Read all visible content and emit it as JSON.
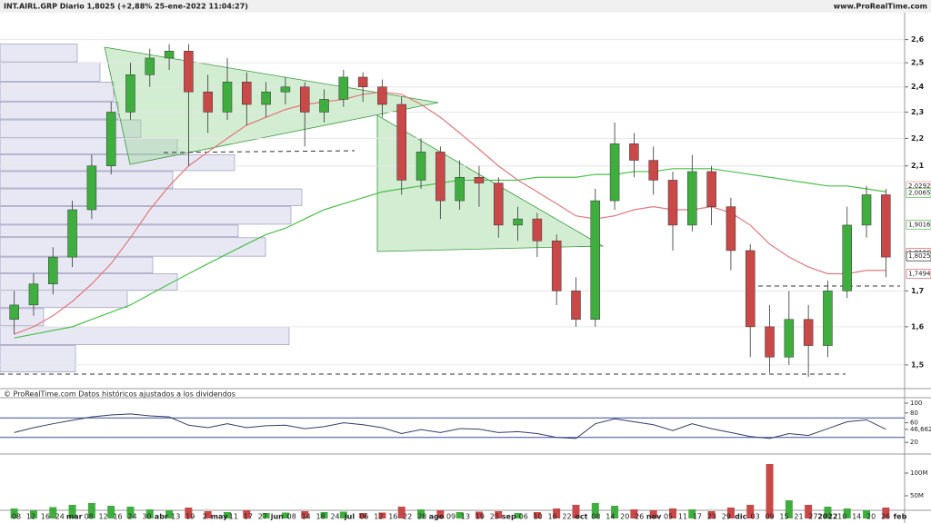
{
  "chart_data": {
    "type": "candlestick",
    "title": "INT.AIRL.GRP Diario 1,8025 (+2,88% 25-ene-2022 11:04:27)",
    "source": "www.ProRealTime.com",
    "note": "© ProRealTime.com  Datos históricos ajustados a los dividendos",
    "log_scale": true,
    "grid": true,
    "up_color": "#3fae3f",
    "down_color": "#c94848",
    "ylim": [
      1.45,
      2.7
    ],
    "yticks": [
      {
        "value": 2.6,
        "label": "2,6"
      },
      {
        "value": 2.5,
        "label": "2,5"
      },
      {
        "value": 2.4,
        "label": "2,4"
      },
      {
        "value": 2.3,
        "label": "2,3"
      },
      {
        "value": 2.2,
        "label": "2,2"
      },
      {
        "value": 2.1,
        "label": "2,1"
      },
      {
        "value": 1.7,
        "label": "1,7"
      },
      {
        "value": 1.6,
        "label": "1,6"
      },
      {
        "value": 1.5,
        "label": "1,5"
      }
    ],
    "open": [
      1.62,
      1.66,
      1.72,
      1.8,
      1.95,
      2.1,
      2.3,
      2.45,
      2.52,
      2.55,
      2.38,
      2.3,
      2.42,
      2.33,
      2.38,
      2.4,
      2.3,
      2.35,
      2.44,
      2.4,
      2.33,
      2.05,
      2.15,
      1.98,
      2.06,
      2.04,
      1.9,
      1.92,
      1.85,
      1.7,
      1.62,
      1.98,
      2.18,
      2.12,
      2.05,
      1.9,
      2.08,
      1.96,
      1.82,
      1.6,
      1.52,
      1.62,
      1.55,
      1.7,
      1.9,
      2.0
    ],
    "high": [
      1.7,
      1.75,
      1.83,
      1.98,
      2.14,
      2.34,
      2.5,
      2.56,
      2.58,
      2.58,
      2.45,
      2.52,
      2.46,
      2.42,
      2.44,
      2.42,
      2.39,
      2.47,
      2.46,
      2.43,
      2.36,
      2.2,
      2.17,
      2.12,
      2.1,
      2.06,
      1.96,
      1.94,
      1.87,
      1.74,
      2.02,
      2.26,
      2.22,
      2.17,
      2.08,
      2.14,
      2.1,
      1.99,
      1.84,
      1.66,
      1.7,
      1.66,
      1.73,
      1.96,
      2.03,
      2.02
    ],
    "low": [
      1.58,
      1.63,
      1.69,
      1.77,
      1.92,
      2.07,
      2.27,
      2.4,
      2.47,
      2.1,
      2.22,
      2.27,
      2.25,
      2.28,
      2.33,
      2.17,
      2.26,
      2.32,
      2.34,
      2.28,
      2.0,
      2.02,
      1.92,
      1.95,
      1.96,
      1.86,
      1.85,
      1.8,
      1.66,
      1.6,
      1.6,
      1.95,
      2.06,
      2.0,
      1.82,
      1.88,
      1.9,
      1.76,
      1.52,
      1.48,
      1.5,
      1.47,
      1.52,
      1.68,
      1.86,
      1.74
    ],
    "close": [
      1.66,
      1.72,
      1.8,
      1.95,
      2.1,
      2.3,
      2.45,
      2.52,
      2.55,
      2.38,
      2.3,
      2.42,
      2.33,
      2.38,
      2.4,
      2.3,
      2.35,
      2.44,
      2.4,
      2.33,
      2.05,
      2.15,
      1.98,
      2.06,
      2.04,
      1.9,
      1.92,
      1.85,
      1.7,
      1.62,
      1.98,
      2.18,
      2.12,
      2.05,
      1.9,
      2.08,
      1.96,
      1.82,
      1.6,
      1.52,
      1.62,
      1.55,
      1.7,
      1.9,
      2.0,
      1.8
    ],
    "moving_averages": [
      {
        "color": "#e07a7a",
        "values": [
          1.58,
          1.6,
          1.63,
          1.67,
          1.72,
          1.78,
          1.86,
          1.95,
          2.03,
          2.1,
          2.15,
          2.2,
          2.25,
          2.28,
          2.31,
          2.33,
          2.34,
          2.35,
          2.37,
          2.38,
          2.37,
          2.33,
          2.28,
          2.22,
          2.16,
          2.1,
          2.05,
          2.01,
          1.97,
          1.93,
          1.92,
          1.93,
          1.95,
          1.96,
          1.95,
          1.95,
          1.96,
          1.94,
          1.9,
          1.84,
          1.8,
          1.77,
          1.75,
          1.75,
          1.76,
          1.76
        ]
      },
      {
        "color": "#4cbf4c",
        "values": [
          1.57,
          1.58,
          1.59,
          1.6,
          1.62,
          1.64,
          1.66,
          1.69,
          1.72,
          1.75,
          1.78,
          1.81,
          1.84,
          1.87,
          1.89,
          1.92,
          1.95,
          1.97,
          1.99,
          2.01,
          2.02,
          2.03,
          2.04,
          2.05,
          2.05,
          2.05,
          2.05,
          2.06,
          2.06,
          2.06,
          2.07,
          2.07,
          2.08,
          2.08,
          2.09,
          2.09,
          2.09,
          2.08,
          2.07,
          2.06,
          2.05,
          2.04,
          2.03,
          2.03,
          2.02,
          2.01
        ]
      }
    ],
    "price_labels": [
      {
        "value": 2.0292,
        "label": "2,0292",
        "color": "#e07a7a"
      },
      {
        "value": 2.0065,
        "label": "2,0065",
        "color": "#3fae3f"
      },
      {
        "value": 1.8126,
        "label": "1,8126",
        "color": "#c94848"
      },
      {
        "value": 1.9016,
        "label": "1,9016",
        "color": "#3fae3f"
      },
      {
        "value": 1.8025,
        "label": "1,8025",
        "color": "#000000"
      },
      {
        "value": 1.7494,
        "label": "1,7494",
        "color": "#c94848"
      }
    ],
    "volume_profile": {
      "color": "#e8e8f4",
      "bins": [
        1.48,
        1.55,
        1.6,
        1.65,
        1.7,
        1.75,
        1.8,
        1.86,
        1.9,
        1.96,
        2.02,
        2.08,
        2.14,
        2.2,
        2.27,
        2.34,
        2.42,
        2.5,
        2.58
      ],
      "values": [
        83,
        318,
        48,
        140,
        195,
        168,
        292,
        262,
        320,
        332,
        190,
        258,
        195,
        155,
        130,
        125,
        110,
        85
      ]
    },
    "rsi": {
      "color": "#333d66",
      "band_color": "#3a4aa0",
      "ylim": [
        0,
        100
      ],
      "bands": [
        70,
        30
      ],
      "yticks": [
        100,
        80,
        60,
        {
          "value": 46.662,
          "label": "46,662"
        },
        20
      ],
      "values": [
        40,
        50,
        58,
        65,
        72,
        76,
        78,
        74,
        72,
        55,
        50,
        58,
        50,
        54,
        55,
        48,
        52,
        60,
        56,
        50,
        38,
        46,
        40,
        48,
        47,
        40,
        42,
        38,
        30,
        28,
        58,
        68,
        62,
        56,
        44,
        58,
        48,
        40,
        32,
        28,
        38,
        34,
        48,
        62,
        66,
        46.662
      ]
    },
    "volume": {
      "ylim": [
        0,
        136000000
      ],
      "yticks": [
        {
          "value": 100000000,
          "label": "100M"
        },
        {
          "value": 50000000,
          "label": "50M"
        }
      ],
      "values": [
        22000000,
        18000000,
        25000000,
        30000000,
        34000000,
        28000000,
        26000000,
        20000000,
        18000000,
        24000000,
        16000000,
        14000000,
        18000000,
        12000000,
        13000000,
        16000000,
        14000000,
        15000000,
        12000000,
        13000000,
        26000000,
        20000000,
        18000000,
        14000000,
        15000000,
        16000000,
        12000000,
        14000000,
        22000000,
        30000000,
        34000000,
        28000000,
        20000000,
        18000000,
        22000000,
        20000000,
        16000000,
        24000000,
        30000000,
        120000000,
        40000000,
        30000000,
        26000000,
        22000000,
        18000000,
        24000000
      ]
    },
    "x_labels": [
      "08",
      "12",
      "16",
      "24",
      "mar",
      "08",
      "12",
      "16",
      "24",
      "30",
      "abr",
      "13",
      "19",
      "2",
      "may",
      "11",
      "17",
      "27",
      "jun",
      "08",
      "14",
      "18",
      "24",
      "jul",
      "06",
      "12",
      "16",
      "22",
      "28",
      "ago",
      "09",
      "13",
      "19",
      "25",
      "sep",
      "06",
      "10",
      "16",
      "22",
      "oct",
      "08",
      "14",
      "20",
      "26",
      "nov",
      "05",
      "11",
      "17",
      "23",
      "29",
      "dic",
      "03",
      "09",
      "15",
      "21",
      "27",
      "2022",
      "10",
      "14",
      "20",
      "26",
      "feb"
    ]
  }
}
